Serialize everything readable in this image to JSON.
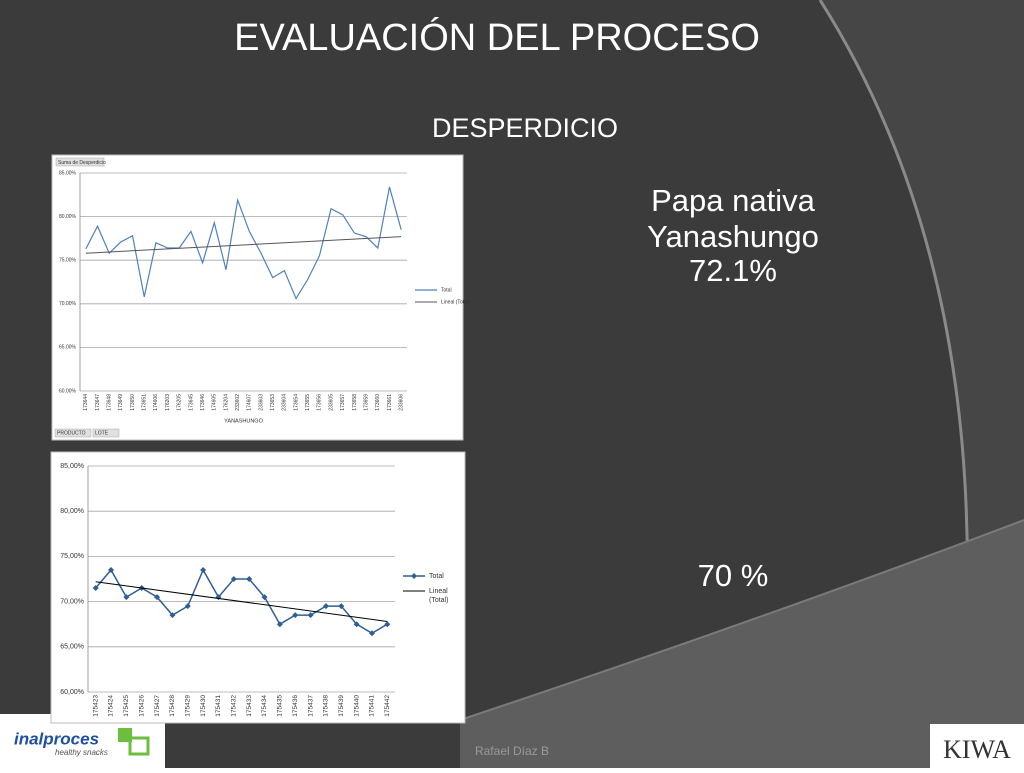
{
  "slide": {
    "title": "EVALUACIÓN DEL PROCESO",
    "subtitle": "DESPERDICIO",
    "product_lines": [
      "Papa nativa",
      "Yanashungo",
      "72.1%"
    ],
    "target": "70 %",
    "author": "Rafael Díaz B",
    "logo_left": "inalproces",
    "logo_left_tagline": "healthy snacks",
    "logo_right": "KIWA"
  },
  "chart_data": [
    {
      "type": "line",
      "title": "Suma de Desperdicio",
      "x_label": "YANASHUNGO",
      "filters": [
        "PRODUCTO",
        "LOTE"
      ],
      "categories": [
        "173644",
        "173647",
        "173648",
        "173649",
        "173650",
        "173651",
        "174606",
        "176203",
        "176205",
        "173645",
        "173646",
        "174605",
        "176204",
        "233602",
        "174607",
        "233603",
        "173653",
        "233604",
        "173654",
        "173655",
        "173656",
        "233605",
        "173657",
        "173658",
        "173659",
        "173660",
        "173661",
        "233606"
      ],
      "series": [
        {
          "name": "Total",
          "color": "#4f81bd",
          "values": [
            76.3,
            78.9,
            75.8,
            77.1,
            77.8,
            70.8,
            77.0,
            76.4,
            76.4,
            78.3,
            74.7,
            79.3,
            73.9,
            81.9,
            78.3,
            75.8,
            73.0,
            73.8,
            70.6,
            72.8,
            75.5,
            80.9,
            80.2,
            78.1,
            77.7,
            76.4,
            83.4,
            78.5
          ]
        }
      ],
      "trend": {
        "name": "Lineal (Total)",
        "color": "#555555",
        "start": 75.8,
        "end": 77.7
      },
      "ylim": [
        60,
        85
      ],
      "yticks": [
        {
          "value": 60,
          "label": "60.00%"
        },
        {
          "value": 65,
          "label": "65.00%"
        },
        {
          "value": 70,
          "label": "70.00%"
        },
        {
          "value": 75,
          "label": "75.00%"
        },
        {
          "value": 80,
          "label": "80.00%"
        },
        {
          "value": 85,
          "label": "85.00%"
        }
      ],
      "grid": true,
      "legend": "right",
      "markers": "none"
    },
    {
      "type": "line",
      "categories": [
        "175423",
        "175424",
        "175425",
        "175426",
        "175427",
        "175428",
        "175429",
        "175430",
        "175431",
        "175432",
        "175433",
        "175434",
        "175435",
        "175436",
        "175437",
        "175438",
        "175439",
        "175440",
        "175441",
        "175442"
      ],
      "series": [
        {
          "name": "Total",
          "color": "#2f5f96",
          "values": [
            71.5,
            73.5,
            70.5,
            71.5,
            70.5,
            68.5,
            69.5,
            73.5,
            70.5,
            72.5,
            72.5,
            70.5,
            67.5,
            68.5,
            68.5,
            69.5,
            69.5,
            67.5,
            66.5,
            67.5
          ]
        }
      ],
      "trend": {
        "name": "Lineal (Total)",
        "color": "#000000",
        "start": 72.2,
        "end": 67.8
      },
      "ylim": [
        60,
        85
      ],
      "yticks": [
        {
          "value": 60,
          "label": "60,00%"
        },
        {
          "value": 65,
          "label": "65,00%"
        },
        {
          "value": 70,
          "label": "70,00%"
        },
        {
          "value": 75,
          "label": "75,00%"
        },
        {
          "value": 80,
          "label": "80,00%"
        },
        {
          "value": 85,
          "label": "85,00%"
        }
      ],
      "grid": true,
      "legend": "right",
      "markers": "diamond"
    }
  ]
}
